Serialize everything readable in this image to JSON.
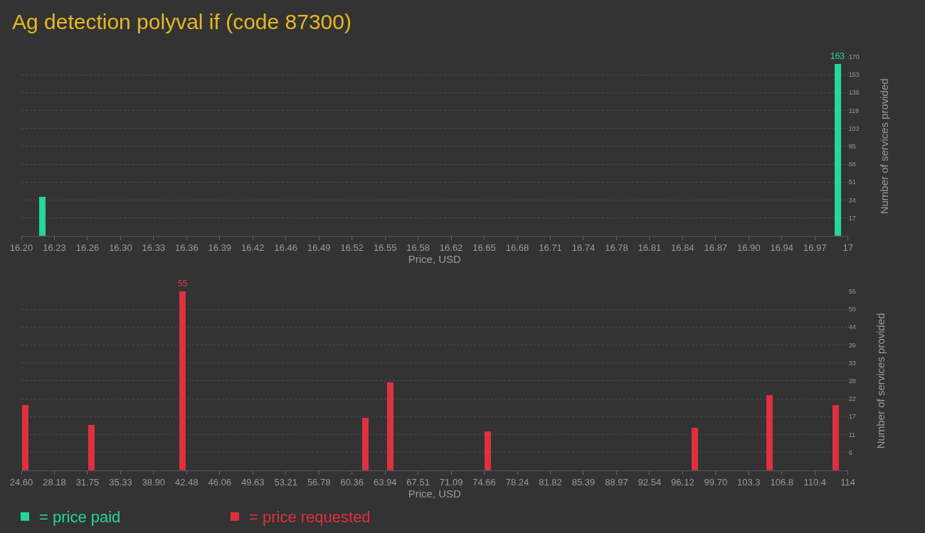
{
  "chart_data": [
    {
      "type": "bar",
      "title": "Ag detection polyval if (code 87300)",
      "xlabel": "Price, USD",
      "ylabel": "Number of services provided",
      "x": [
        16.22,
        16.99
      ],
      "series": [
        {
          "name": "= price paid",
          "color": "#22d89a",
          "values": [
            37,
            163
          ],
          "value_labels": [
            null,
            "163"
          ]
        }
      ],
      "xlim": [
        16.2,
        17.0
      ],
      "xticks": [
        {
          "value": 16.2,
          "label": "16.20"
        },
        {
          "value": 16.232,
          "label": "16.23"
        },
        {
          "value": 16.264,
          "label": "16.26"
        },
        {
          "value": 16.296,
          "label": "16.30"
        },
        {
          "value": 16.328,
          "label": "16.33"
        },
        {
          "value": 16.36,
          "label": "16.36"
        },
        {
          "value": 16.392,
          "label": "16.39"
        },
        {
          "value": 16.424,
          "label": "16.42"
        },
        {
          "value": 16.456,
          "label": "16.46"
        },
        {
          "value": 16.488,
          "label": "16.49"
        },
        {
          "value": 16.52,
          "label": "16.52"
        },
        {
          "value": 16.552,
          "label": "16.55"
        },
        {
          "value": 16.584,
          "label": "16.58"
        },
        {
          "value": 16.616,
          "label": "16.62"
        },
        {
          "value": 16.648,
          "label": "16.65"
        },
        {
          "value": 16.68,
          "label": "16.68"
        },
        {
          "value": 16.712,
          "label": "16.71"
        },
        {
          "value": 16.744,
          "label": "16.74"
        },
        {
          "value": 16.776,
          "label": "16.78"
        },
        {
          "value": 16.808,
          "label": "16.81"
        },
        {
          "value": 16.84,
          "label": "16.84"
        },
        {
          "value": 16.872,
          "label": "16.87"
        },
        {
          "value": 16.904,
          "label": "16.90"
        },
        {
          "value": 16.936,
          "label": "16.94"
        },
        {
          "value": 16.968,
          "label": "16.97"
        },
        {
          "value": 17.0,
          "label": "17"
        }
      ],
      "ylim": [
        0,
        170
      ],
      "yticks": [
        17,
        34,
        51,
        68,
        85,
        102,
        119,
        136,
        153,
        170
      ],
      "grid": "y",
      "legend": "bottom left"
    },
    {
      "type": "bar",
      "xlabel": "Price, USD",
      "ylabel": "Number of services provided",
      "x": [
        25.03,
        32.18,
        42.05,
        61.81,
        64.49,
        75.02,
        97.46,
        105.55,
        112.69
      ],
      "series": [
        {
          "name": "= price requested",
          "color": "#e0303f",
          "values": [
            20,
            14,
            55,
            16,
            27,
            12,
            13,
            23,
            20
          ],
          "value_labels": [
            null,
            null,
            "55",
            null,
            null,
            null,
            null,
            null,
            null
          ]
        }
      ],
      "xlim": [
        24.6,
        114
      ],
      "xticks": [
        {
          "value": 24.6,
          "label": "24.60"
        },
        {
          "value": 28.18,
          "label": "28.18"
        },
        {
          "value": 31.75,
          "label": "31.75"
        },
        {
          "value": 35.33,
          "label": "35.33"
        },
        {
          "value": 38.9,
          "label": "38.90"
        },
        {
          "value": 42.48,
          "label": "42.48"
        },
        {
          "value": 46.06,
          "label": "46.06"
        },
        {
          "value": 49.63,
          "label": "49.63"
        },
        {
          "value": 53.21,
          "label": "53.21"
        },
        {
          "value": 56.78,
          "label": "56.78"
        },
        {
          "value": 60.36,
          "label": "60.36"
        },
        {
          "value": 63.94,
          "label": "63.94"
        },
        {
          "value": 67.51,
          "label": "67.51"
        },
        {
          "value": 71.09,
          "label": "71.09"
        },
        {
          "value": 74.66,
          "label": "74.66"
        },
        {
          "value": 78.24,
          "label": "78.24"
        },
        {
          "value": 81.82,
          "label": "81.82"
        },
        {
          "value": 85.39,
          "label": "85.39"
        },
        {
          "value": 88.97,
          "label": "88.97"
        },
        {
          "value": 92.54,
          "label": "92.54"
        },
        {
          "value": 96.12,
          "label": "96.12"
        },
        {
          "value": 99.7,
          "label": "99.70"
        },
        {
          "value": 103.27,
          "label": "103.3"
        },
        {
          "value": 106.85,
          "label": "106.8"
        },
        {
          "value": 110.42,
          "label": "110.4"
        },
        {
          "value": 114,
          "label": "114"
        }
      ],
      "ylim": [
        0,
        55
      ],
      "yticks": [
        {
          "value": 5.5,
          "label": "6"
        },
        {
          "value": 11,
          "label": "11"
        },
        {
          "value": 16.5,
          "label": "17"
        },
        {
          "value": 22,
          "label": "22"
        },
        {
          "value": 27.5,
          "label": "28"
        },
        {
          "value": 33,
          "label": "33"
        },
        {
          "value": 38.5,
          "label": "39"
        },
        {
          "value": 44,
          "label": "44"
        },
        {
          "value": 49.5,
          "label": "50"
        },
        {
          "value": 55,
          "label": "55"
        }
      ],
      "grid": "y",
      "legend": "bottom left"
    }
  ]
}
